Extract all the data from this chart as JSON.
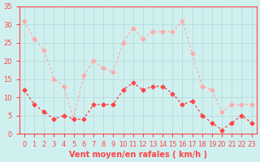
{
  "hours": [
    0,
    1,
    2,
    3,
    4,
    5,
    6,
    7,
    8,
    9,
    10,
    11,
    12,
    13,
    14,
    15,
    16,
    17,
    18,
    19,
    20,
    21,
    22,
    23
  ],
  "wind_avg": [
    12,
    8,
    6,
    4,
    5,
    4,
    4,
    8,
    8,
    8,
    12,
    14,
    12,
    13,
    13,
    11,
    8,
    9,
    5,
    3,
    1,
    3,
    5,
    3
  ],
  "wind_gust": [
    31,
    26,
    23,
    15,
    13,
    4,
    16,
    20,
    18,
    17,
    25,
    29,
    26,
    28,
    28,
    28,
    31,
    22,
    13,
    12,
    6,
    8,
    8,
    8
  ],
  "avg_color": "#ff4444",
  "gust_color": "#ffaaaa",
  "bg_color": "#d0f0f0",
  "grid_color": "#b0d8d8",
  "axis_color": "#ff4444",
  "xlabel": "Vent moyen/en rafales ( km/h )",
  "ylim": [
    0,
    35
  ],
  "yticks": [
    0,
    5,
    10,
    15,
    20,
    25,
    30,
    35
  ],
  "title_fontsize": 8,
  "label_fontsize": 7,
  "tick_fontsize": 6
}
